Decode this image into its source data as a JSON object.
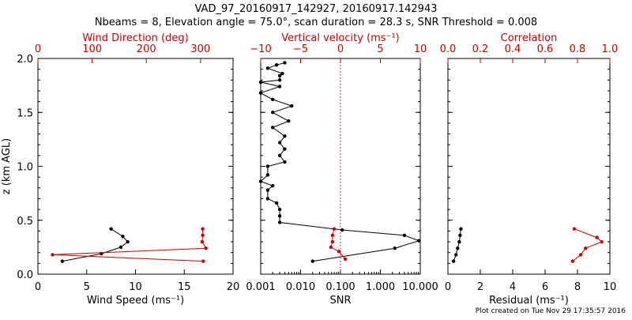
{
  "header": {
    "title_line1": "VAD_97_20160917_142927, 20160917.142943",
    "title_line2": "Nbeams = 8, Elevation angle = 75.0°, scan duration = 28.3 s, SNR Threshold = 0.008"
  },
  "footer": {
    "timestamp": "Plot created on Tue Nov 29 17:35:57 2016"
  },
  "colors": {
    "primary": "#000000",
    "secondary": "#cc0000"
  },
  "chart_data": [
    {
      "type": "line",
      "ylabel": "z (km AGL)",
      "ylim": [
        0,
        2
      ],
      "y_ticks": [
        "0.0",
        "0.5",
        "1.0",
        "1.5",
        "2.0"
      ],
      "bottom_axis": {
        "label": "Wind Speed (ms⁻¹)",
        "range": [
          0,
          20
        ],
        "ticks": [
          "0",
          "5",
          "10",
          "15",
          "20"
        ]
      },
      "top_axis": {
        "label": "Wind Direction (deg)",
        "range": [
          0,
          360
        ],
        "ticks": [
          "0",
          "100",
          "200",
          "300"
        ]
      },
      "series": [
        {
          "axis": "bottom",
          "color": "#000000",
          "x": [
            2.5,
            6.5,
            8.5,
            9.2,
            8.7,
            7.5
          ],
          "y": [
            0.12,
            0.19,
            0.25,
            0.3,
            0.35,
            0.42
          ]
        },
        {
          "axis": "top",
          "color": "#cc0000",
          "x": [
            305,
            27,
            310,
            303,
            304,
            304
          ],
          "y": [
            0.12,
            0.18,
            0.24,
            0.3,
            0.36,
            0.42
          ]
        }
      ]
    },
    {
      "type": "line",
      "ylim": [
        0,
        2
      ],
      "bottom_axis": {
        "label": "SNR",
        "scale": "log",
        "range": [
          0.001,
          10
        ],
        "ticks": [
          "0.001",
          "0.010",
          "0.100",
          "1.000",
          "10.000"
        ]
      },
      "top_axis": {
        "label": "Vertical velocity (ms⁻¹)",
        "range": [
          -10,
          10
        ],
        "ticks": [
          "−10",
          "−5",
          "0",
          "5",
          "10"
        ]
      },
      "reference_line": {
        "axis": "top",
        "x": 0,
        "style": "dotted"
      },
      "series": [
        {
          "axis": "bottom",
          "color": "#000000",
          "scale": "log",
          "x": [
            0.02,
            2.3,
            9.2,
            4.0,
            0.11,
            0.003,
            0.003,
            0.003,
            0.0025,
            0.0015,
            0.0015,
            0.002,
            0.001,
            0.0015,
            0.0015,
            0.004,
            0.003,
            0.004,
            0.003,
            0.004,
            0.002,
            0.005,
            0.002,
            0.006,
            0.002,
            0.001,
            0.003,
            0.001,
            0.003,
            0.003,
            0.0035,
            0.0015,
            0.0025,
            0.004
          ],
          "y": [
            0.12,
            0.24,
            0.31,
            0.36,
            0.41,
            0.48,
            0.54,
            0.6,
            0.66,
            0.7,
            0.78,
            0.82,
            0.86,
            0.92,
            1.0,
            1.04,
            1.1,
            1.16,
            1.22,
            1.28,
            1.36,
            1.42,
            1.5,
            1.56,
            1.62,
            1.68,
            1.74,
            1.78,
            1.8,
            1.84,
            1.86,
            1.91,
            1.94,
            1.96
          ]
        },
        {
          "axis": "top",
          "color": "#cc0000",
          "x": [
            0.6,
            -0.2,
            -1.2,
            -1.0,
            -1.0,
            -0.8
          ],
          "y": [
            0.14,
            0.21,
            0.25,
            0.3,
            0.36,
            0.42
          ]
        }
      ]
    },
    {
      "type": "line",
      "ylim": [
        0,
        2
      ],
      "bottom_axis": {
        "label": "Residual (ms⁻¹)",
        "range": [
          0,
          10
        ],
        "ticks": [
          "0",
          "2",
          "4",
          "6",
          "8",
          "10"
        ]
      },
      "top_axis": {
        "label": "Correlation",
        "range": [
          0,
          1
        ],
        "ticks": [
          "0.0",
          "0.2",
          "0.4",
          "0.6",
          "0.8",
          "1.0"
        ]
      },
      "series": [
        {
          "axis": "bottom",
          "color": "#000000",
          "x": [
            0.35,
            0.5,
            0.6,
            0.7,
            0.75,
            0.8
          ],
          "y": [
            0.12,
            0.18,
            0.24,
            0.3,
            0.36,
            0.42
          ]
        },
        {
          "axis": "top",
          "color": "#cc0000",
          "x": [
            0.77,
            0.82,
            0.85,
            0.95,
            0.92,
            0.78
          ],
          "y": [
            0.12,
            0.18,
            0.24,
            0.3,
            0.34,
            0.42
          ]
        }
      ]
    }
  ]
}
